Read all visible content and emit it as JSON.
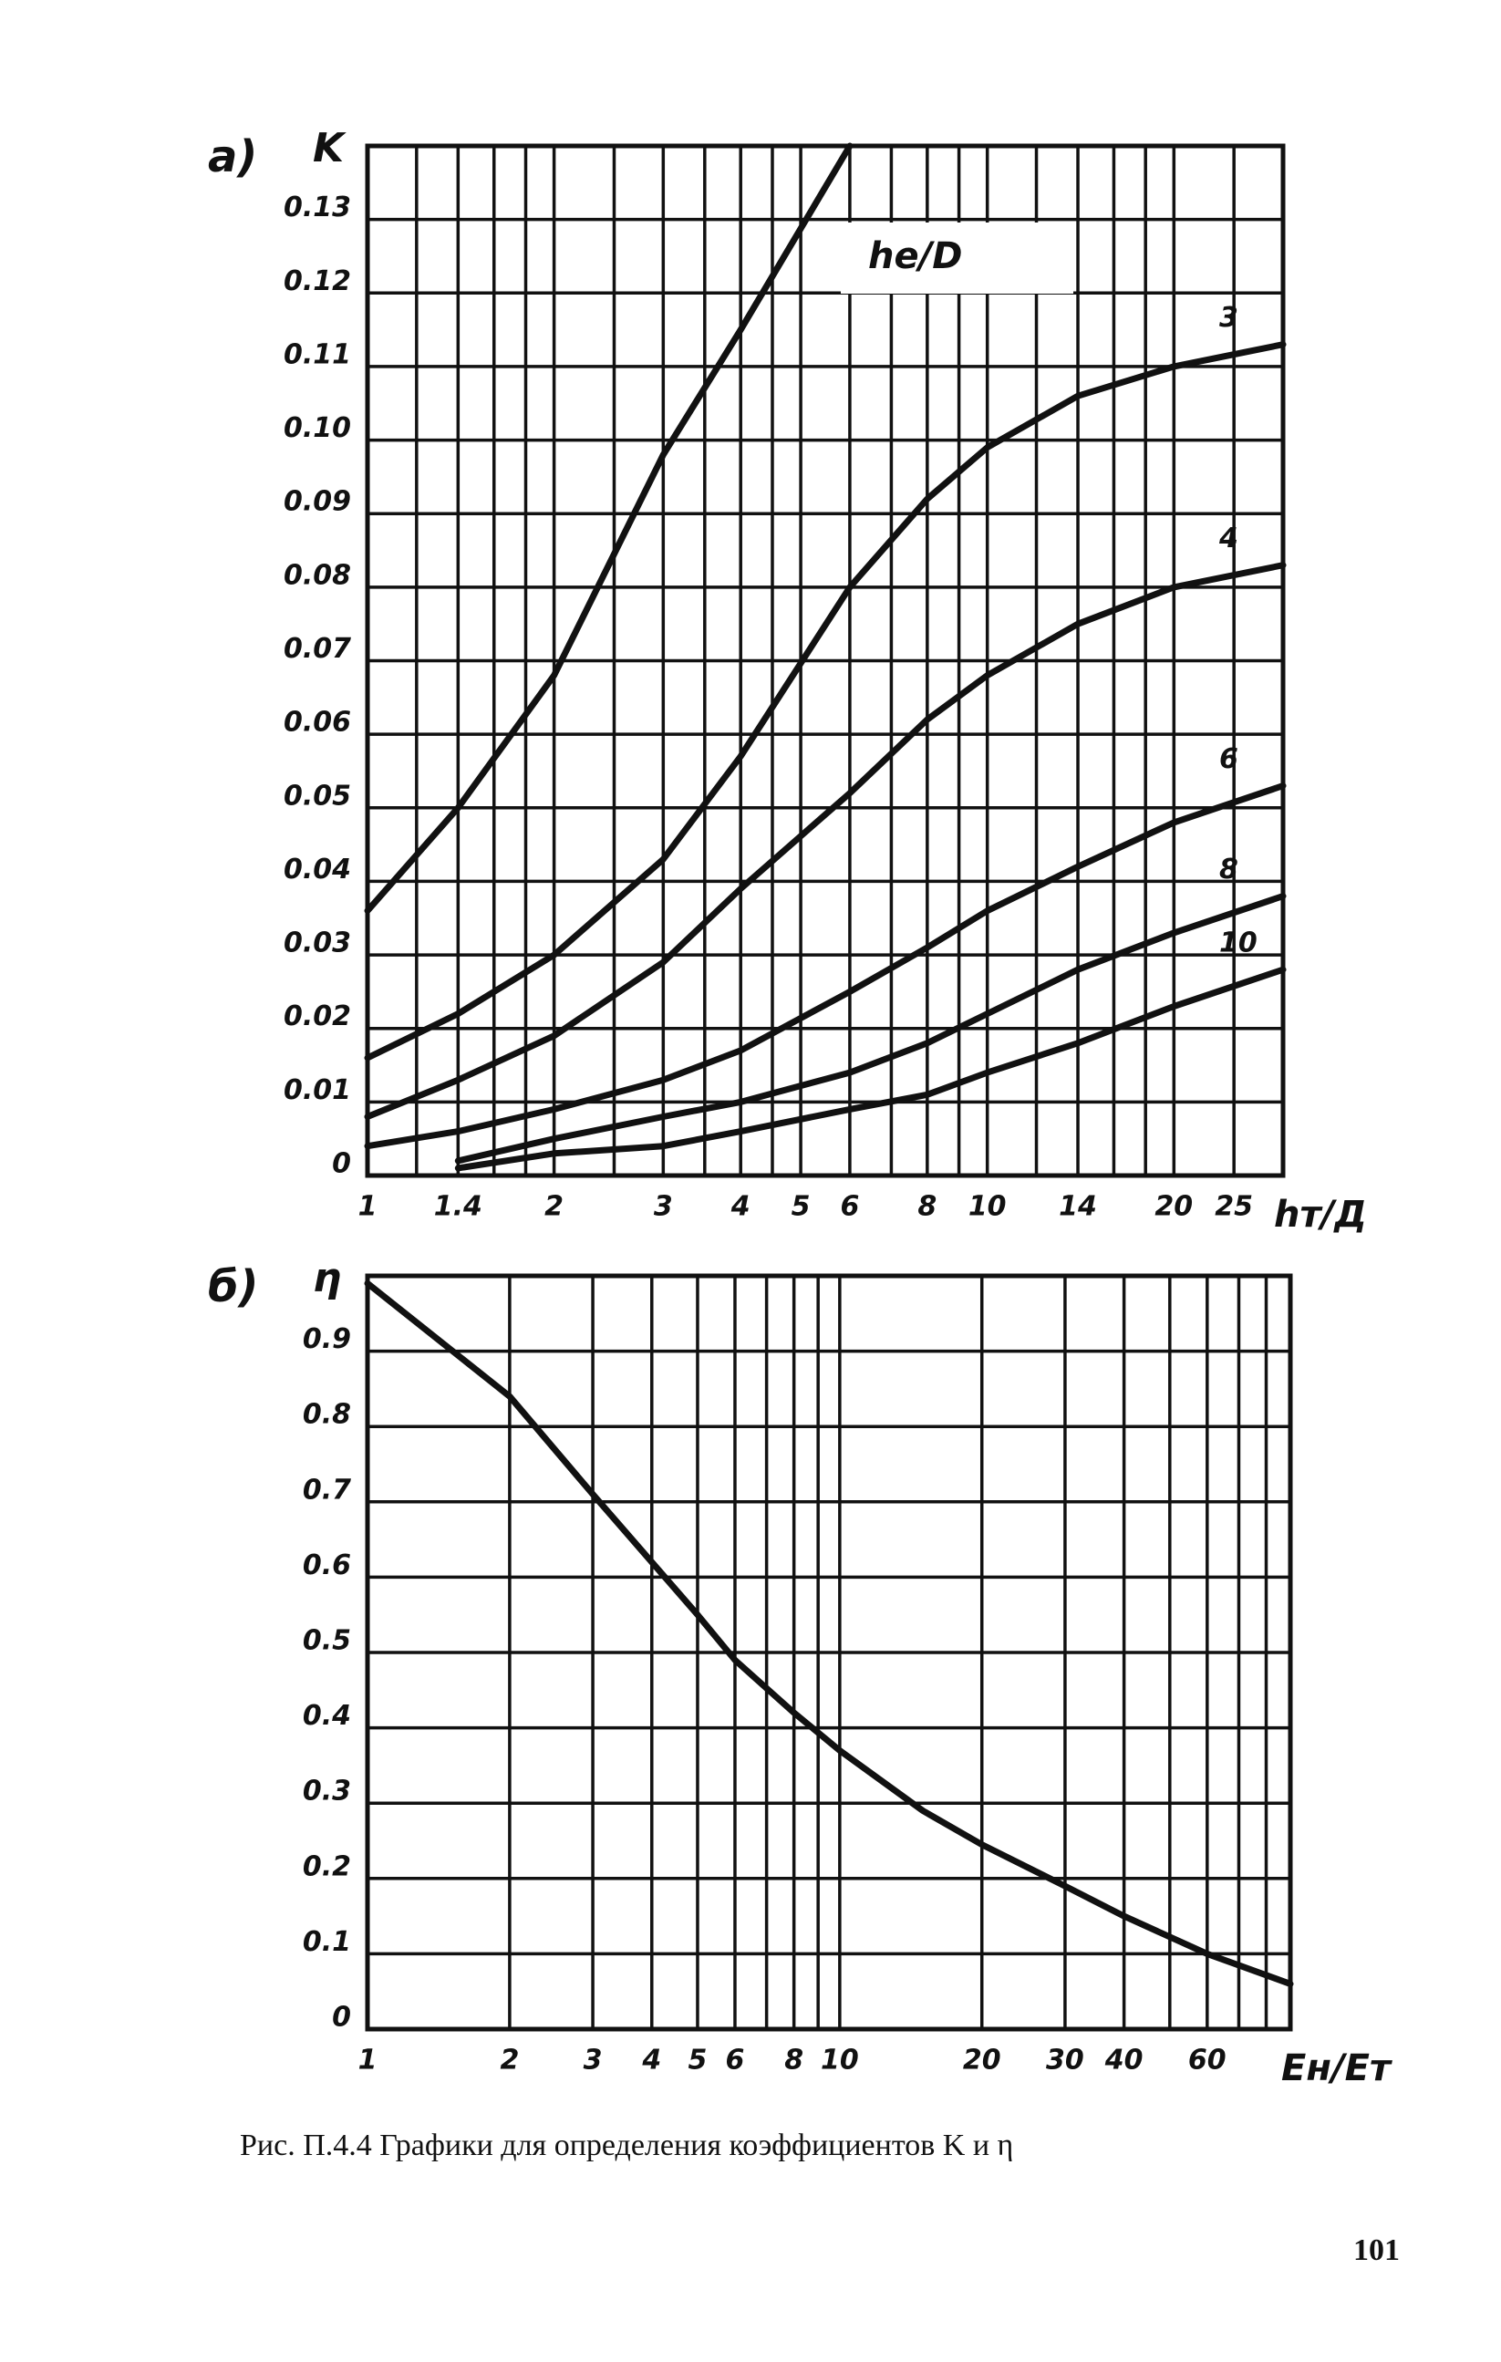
{
  "chart_data": [
    {
      "type": "line",
      "panel_label": "a)",
      "y_label": "K",
      "x_label": "hт/Д",
      "annotation": "hе/D",
      "log_x": true,
      "grid": true,
      "color": "#111111",
      "xlim": [
        1,
        30
      ],
      "ylim": [
        0,
        0.14
      ],
      "xticks": [
        1,
        1.4,
        2,
        3,
        4,
        5,
        6,
        8,
        10,
        14,
        20,
        25
      ],
      "x_minor_grid": [
        1.2,
        1.6,
        1.8,
        2.5,
        3.5,
        4.5,
        7,
        9,
        12,
        16,
        18,
        30
      ],
      "yticks": [
        0,
        0.01,
        0.02,
        0.03,
        0.04,
        0.05,
        0.06,
        0.07,
        0.08,
        0.09,
        {
          "value": 0.1,
          "label": "0.10"
        },
        0.11,
        0.12,
        0.13
      ],
      "x": [
        1,
        1.4,
        2,
        3,
        4,
        6,
        8,
        10,
        14,
        20,
        30
      ],
      "series": [
        {
          "values": [
            0.036,
            0.05,
            0.068,
            0.098,
            0.115,
            0.14,
            null,
            null,
            null,
            null,
            null
          ]
        },
        {
          "name": "3",
          "values": [
            0.016,
            0.022,
            0.03,
            0.043,
            0.057,
            0.08,
            0.092,
            0.099,
            0.106,
            0.11,
            0.113
          ]
        },
        {
          "name": "4",
          "values": [
            0.008,
            0.013,
            0.019,
            0.029,
            0.039,
            0.052,
            0.062,
            0.068,
            0.075,
            0.08,
            0.083
          ]
        },
        {
          "name": "6",
          "values": [
            0.004,
            0.006,
            0.009,
            0.013,
            0.017,
            0.025,
            0.031,
            0.036,
            0.042,
            0.048,
            0.053
          ]
        },
        {
          "name": "8",
          "values": [
            null,
            0.002,
            0.005,
            0.008,
            0.01,
            0.014,
            0.018,
            0.022,
            0.028,
            0.033,
            0.038
          ]
        },
        {
          "name": "10",
          "values": [
            null,
            0.001,
            0.003,
            0.004,
            0.006,
            0.009,
            0.011,
            0.014,
            0.018,
            0.023,
            0.028
          ]
        }
      ]
    },
    {
      "type": "line",
      "panel_label": "б)",
      "y_label": "η",
      "x_label": "Eн/Eт",
      "log_x": true,
      "grid": true,
      "color": "#111111",
      "xlim": [
        1,
        90
      ],
      "ylim": [
        0,
        1
      ],
      "xticks": [
        1,
        2,
        3,
        4,
        5,
        6,
        8,
        10,
        20,
        30,
        40,
        60
      ],
      "x_minor_grid": [
        7,
        9,
        50,
        70,
        80
      ],
      "yticks": [
        0,
        0.1,
        0.2,
        0.3,
        0.4,
        0.5,
        0.6,
        0.7,
        0.8,
        0.9
      ],
      "x": [
        1,
        2,
        3,
        4,
        5,
        6,
        8,
        10,
        15,
        20,
        30,
        40,
        60,
        90
      ],
      "series": [
        {
          "values": [
            0.99,
            0.84,
            0.71,
            0.62,
            0.55,
            0.49,
            0.42,
            0.37,
            0.29,
            0.245,
            0.19,
            0.15,
            0.1,
            0.06
          ]
        }
      ]
    }
  ],
  "caption": "Рис. П.4.4  Графики для определения коэффициентов K и η",
  "page_number": "101"
}
